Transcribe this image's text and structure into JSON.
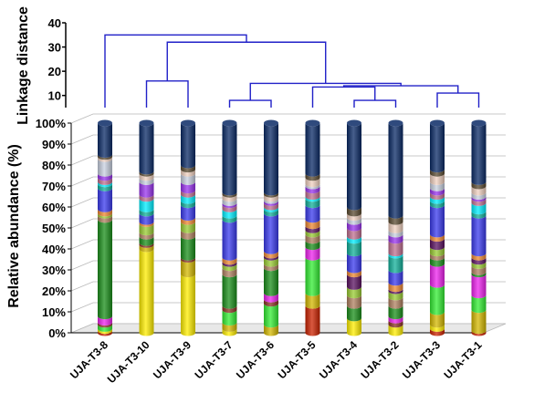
{
  "chart_data": [
    {
      "type": "dendrogram",
      "ylabel": "Linkage distance",
      "yticks": [
        10,
        20,
        30,
        40
      ],
      "ylim": [
        5,
        40
      ],
      "leaves": [
        "UJA-T3-8",
        "UJA-T3-10",
        "UJA-T3-9",
        "UJA-T3-7",
        "UJA-T3-6",
        "UJA-T3-5",
        "UJA-T3-4",
        "UJA-T3-2",
        "UJA-T3-3",
        "UJA-T3-1"
      ],
      "merges": [
        {
          "left": 3,
          "right": 4,
          "height": 8
        },
        {
          "left": 6,
          "right": 7,
          "height": 8
        },
        {
          "left": 8,
          "right": 9,
          "height": 11
        },
        {
          "left": 5,
          "right": 11,
          "height": 13.5
        },
        {
          "left": 13,
          "right": 12,
          "height": 14
        },
        {
          "left": 10,
          "right": 14,
          "height": 15
        },
        {
          "left": 1,
          "right": 2,
          "height": 16
        },
        {
          "left": 16,
          "right": 15,
          "height": 32
        },
        {
          "left": 0,
          "right": 17,
          "height": 35
        }
      ]
    },
    {
      "type": "stacked-bar",
      "ylabel": "Relative abundance (%)",
      "yticks": [
        "0%",
        "10%",
        "20%",
        "30%",
        "40%",
        "50%",
        "60%",
        "70%",
        "80%",
        "90%",
        "100%"
      ],
      "ylim": [
        0,
        100
      ],
      "categories": [
        "UJA-T3-8",
        "UJA-T3-10",
        "UJA-T3-9",
        "UJA-T3-7",
        "UJA-T3-6",
        "UJA-T3-5",
        "UJA-T3-4",
        "UJA-T3-2",
        "UJA-T3-3",
        "UJA-T3-1"
      ],
      "colors": [
        "#cc2200",
        "#ffee00",
        "#d4b800",
        "#33ee33",
        "#8a3322",
        "#ee22ee",
        "#1a8f1a",
        "#b08060",
        "#9acc33",
        "#5a1160",
        "#ee8833",
        "#3a3aee",
        "#11b09a",
        "#00eeff",
        "#c07090",
        "#9933ee",
        "#c8d0e0",
        "#f0d0c0",
        "#5a4a30",
        "#0a2a66"
      ],
      "series": [
        {
          "values": [
            1,
            0,
            0,
            0,
            0,
            13,
            0,
            0,
            2,
            1
          ]
        },
        {
          "values": [
            1,
            40,
            28,
            2,
            0,
            0,
            7,
            4,
            2,
            0
          ]
        },
        {
          "values": [
            0,
            2,
            7,
            3,
            4,
            6,
            0,
            0,
            6,
            10
          ]
        },
        {
          "values": [
            2,
            0,
            0,
            6,
            10,
            17,
            0,
            0,
            13,
            7
          ]
        },
        {
          "values": [
            1,
            1,
            1,
            2,
            2,
            0,
            0,
            2,
            0,
            0
          ]
        },
        {
          "values": [
            3,
            0,
            0,
            0,
            3,
            5,
            0,
            2,
            10,
            10
          ]
        },
        {
          "values": [
            46,
            3,
            10,
            15,
            12,
            3,
            6,
            5,
            3,
            1
          ]
        },
        {
          "values": [
            2,
            2,
            3,
            3,
            2,
            3,
            5,
            4,
            2,
            3
          ]
        },
        {
          "values": [
            1,
            4,
            4,
            2,
            3,
            2,
            4,
            3,
            3,
            2
          ]
        },
        {
          "values": [
            0,
            0,
            0,
            1,
            1,
            2,
            6,
            1,
            4,
            2
          ]
        },
        {
          "values": [
            2,
            1,
            2,
            2,
            2,
            3,
            2,
            3,
            2,
            2
          ]
        },
        {
          "values": [
            10,
            4,
            6,
            18,
            18,
            7,
            8,
            6,
            14,
            18
          ]
        },
        {
          "values": [
            2,
            2,
            2,
            2,
            2,
            3,
            6,
            7,
            2,
            2
          ]
        },
        {
          "values": [
            1,
            5,
            3,
            3,
            1,
            1,
            2,
            1,
            2,
            4
          ]
        },
        {
          "values": [
            2,
            2,
            2,
            2,
            2,
            3,
            4,
            6,
            2,
            2
          ]
        },
        {
          "values": [
            2,
            6,
            4,
            1,
            1,
            2,
            3,
            3,
            2,
            1
          ]
        },
        {
          "values": [
            7,
            2,
            4,
            2,
            1,
            1,
            2,
            2,
            3,
            2
          ]
        },
        {
          "values": [
            1,
            2,
            2,
            2,
            2,
            3,
            2,
            4,
            4,
            3
          ]
        },
        {
          "values": [
            1,
            1,
            2,
            1,
            1,
            2,
            3,
            3,
            2,
            2
          ]
        },
        {
          "values": [
            15,
            23,
            20,
            33,
            33,
            24,
            40,
            44,
            22,
            28
          ]
        }
      ]
    }
  ]
}
